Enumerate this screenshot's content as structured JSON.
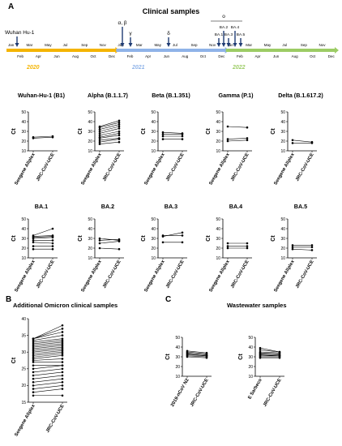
{
  "panel_labels": {
    "a": "A",
    "b": "B",
    "c": "C"
  },
  "timeline": {
    "title": "Clinical samples",
    "start_label": "Wuhan Hu-1",
    "years": [
      {
        "label": "2020",
        "color": "#f4b400"
      },
      {
        "label": "2021",
        "color": "#8fb3e8"
      },
      {
        "label": "2022",
        "color": "#9ccc65"
      }
    ],
    "top_months": [
      "Jan",
      "Mar",
      "May",
      "Jul",
      "Sep",
      "Nov",
      "Jan",
      "Mar",
      "May",
      "Jul",
      "Sep",
      "Nov",
      "Jan",
      "Mar",
      "May",
      "Jul",
      "Sep",
      "Nov"
    ],
    "bottom_months": [
      "Feb",
      "Apr",
      "Jun",
      "Aug",
      "Oct",
      "Dec",
      "Feb",
      "Apr",
      "Jun",
      "Aug",
      "Oct",
      "Dec",
      "Feb",
      "Apr",
      "Jun",
      "Aug",
      "Oct",
      "Dec"
    ],
    "variants": [
      "α, β",
      "γ",
      "δ",
      "ο",
      "BA.1",
      "BA.2",
      "BA.3",
      "BA.4",
      "BA.5"
    ]
  },
  "chart_data": [
    {
      "type": "line",
      "title": "Wuhan-Hu-1 (B1)",
      "ylabel": "Ct",
      "ylim": [
        10,
        50
      ],
      "yticks": [
        "10",
        "20",
        "30",
        "40",
        "50"
      ],
      "categories": [
        "Seegene Allplex",
        "JRC-CoV-UCE"
      ],
      "series": [
        {
          "values": [
            23,
            24
          ]
        },
        {
          "values": [
            24,
            25
          ]
        }
      ]
    },
    {
      "type": "line",
      "title": "Alpha (B.1.1.7)",
      "ylabel": "Ct",
      "ylim": [
        10,
        50
      ],
      "yticks": [
        "10",
        "20",
        "30",
        "40",
        "50"
      ],
      "categories": [
        "Seegene Allplex",
        "JRC-CoV-UCE"
      ],
      "series": [
        {
          "values": [
            17,
            19
          ]
        },
        {
          "values": [
            19,
            22
          ]
        },
        {
          "values": [
            21,
            23
          ]
        },
        {
          "values": [
            23,
            26
          ]
        },
        {
          "values": [
            24,
            28
          ]
        },
        {
          "values": [
            26,
            30
          ]
        },
        {
          "values": [
            28,
            33
          ]
        },
        {
          "values": [
            30,
            35
          ]
        },
        {
          "values": [
            32,
            37
          ]
        },
        {
          "values": [
            34,
            39
          ]
        },
        {
          "values": [
            35,
            41
          ]
        }
      ]
    },
    {
      "type": "line",
      "title": "Beta (B.1.351)",
      "ylabel": "Ct",
      "ylim": [
        10,
        50
      ],
      "yticks": [
        "10",
        "20",
        "30",
        "40",
        "50"
      ],
      "categories": [
        "Seegene Allplex",
        "JRC-CoV-UCE"
      ],
      "series": [
        {
          "values": [
            22,
            22
          ]
        },
        {
          "values": [
            25,
            25
          ]
        },
        {
          "values": [
            27,
            27
          ]
        },
        {
          "values": [
            29,
            28
          ]
        }
      ]
    },
    {
      "type": "line",
      "title": "Gamma (P.1)",
      "ylabel": "Ct",
      "ylim": [
        10,
        50
      ],
      "yticks": [
        "10",
        "20",
        "30",
        "40",
        "50"
      ],
      "categories": [
        "Seegene Allplex",
        "JRC-CoV-UCE"
      ],
      "series": [
        {
          "values": [
            20,
            21
          ]
        },
        {
          "values": [
            22,
            23
          ]
        },
        {
          "values": [
            35,
            34
          ]
        }
      ]
    },
    {
      "type": "line",
      "title": "Delta (B.1.617.2)",
      "ylabel": "Ct",
      "ylim": [
        10,
        50
      ],
      "yticks": [
        "10",
        "20",
        "30",
        "40",
        "50"
      ],
      "categories": [
        "Seegene Allplex",
        "JRC-CoV-UCE"
      ],
      "series": [
        {
          "values": [
            18,
            18
          ]
        },
        {
          "values": [
            21,
            19
          ]
        }
      ]
    },
    {
      "type": "line",
      "title": "BA.1",
      "ylabel": "Ct",
      "ylim": [
        10,
        50
      ],
      "yticks": [
        "10",
        "20",
        "30",
        "40",
        "50"
      ],
      "categories": [
        "Seegene Allplex",
        "JRC-CoV-UCE"
      ],
      "series": [
        {
          "values": [
            19,
            19
          ]
        },
        {
          "values": [
            22,
            22
          ]
        },
        {
          "values": [
            26,
            25
          ]
        },
        {
          "values": [
            28,
            28
          ]
        },
        {
          "values": [
            30,
            31
          ]
        },
        {
          "values": [
            31,
            32
          ]
        },
        {
          "values": [
            32,
            33
          ]
        },
        {
          "values": [
            33,
            40
          ]
        }
      ]
    },
    {
      "type": "line",
      "title": "BA.2",
      "ylabel": "Ct",
      "ylim": [
        10,
        50
      ],
      "yticks": [
        "10",
        "20",
        "30",
        "40",
        "50"
      ],
      "categories": [
        "Seegene Allplex",
        "JRC-CoV-UCE"
      ],
      "series": [
        {
          "values": [
            20,
            19
          ]
        },
        {
          "values": [
            25,
            27
          ]
        },
        {
          "values": [
            28,
            29
          ]
        },
        {
          "values": [
            30,
            28
          ]
        }
      ]
    },
    {
      "type": "line",
      "title": "BA.3",
      "ylabel": "Ct",
      "ylim": [
        10,
        50
      ],
      "yticks": [
        "10",
        "20",
        "30",
        "40",
        "50"
      ],
      "categories": [
        "Seegene Allplex",
        "JRC-CoV-UCE"
      ],
      "series": [
        {
          "values": [
            26,
            26
          ]
        },
        {
          "values": [
            32,
            36
          ]
        },
        {
          "values": [
            33,
            33
          ]
        }
      ]
    },
    {
      "type": "line",
      "title": "BA.4",
      "ylabel": "Ct",
      "ylim": [
        10,
        50
      ],
      "yticks": [
        "10",
        "20",
        "30",
        "40",
        "50"
      ],
      "categories": [
        "Seegene Allplex",
        "JRC-CoV-UCE"
      ],
      "series": [
        {
          "values": [
            20,
            20
          ]
        },
        {
          "values": [
            22,
            22
          ]
        },
        {
          "values": [
            25,
            25
          ]
        }
      ]
    },
    {
      "type": "line",
      "title": "BA.5",
      "ylabel": "Ct",
      "ylim": [
        10,
        50
      ],
      "yticks": [
        "10",
        "20",
        "30",
        "40",
        "50"
      ],
      "categories": [
        "Seegene Allplex",
        "JRC-CoV-UCE"
      ],
      "series": [
        {
          "values": [
            19,
            18
          ]
        },
        {
          "values": [
            21,
            21
          ]
        },
        {
          "values": [
            23,
            23
          ]
        }
      ]
    },
    {
      "type": "line",
      "title": "Additional Omicron clinical samples",
      "ylabel": "Ct",
      "ylim": [
        15,
        40
      ],
      "yticks": [
        "15",
        "20",
        "25",
        "30",
        "35",
        "40"
      ],
      "categories": [
        "Seegene Allplex",
        "JRC-CoV-UCE"
      ],
      "series": [
        {
          "values": [
            17,
            17
          ]
        },
        {
          "values": [
            18,
            19
          ]
        },
        {
          "values": [
            19,
            20
          ]
        },
        {
          "values": [
            20,
            21
          ]
        },
        {
          "values": [
            21,
            22
          ]
        },
        {
          "values": [
            22,
            23
          ]
        },
        {
          "values": [
            23,
            24
          ]
        },
        {
          "values": [
            24,
            25
          ]
        },
        {
          "values": [
            25,
            26
          ]
        },
        {
          "values": [
            26,
            26
          ]
        },
        {
          "values": [
            27,
            27
          ]
        },
        {
          "values": [
            27.5,
            28
          ]
        },
        {
          "values": [
            28,
            29
          ]
        },
        {
          "values": [
            28.5,
            29.5
          ]
        },
        {
          "values": [
            29,
            30
          ]
        },
        {
          "values": [
            29.5,
            30.5
          ]
        },
        {
          "values": [
            30,
            31
          ]
        },
        {
          "values": [
            30.5,
            31.5
          ]
        },
        {
          "values": [
            31,
            32
          ]
        },
        {
          "values": [
            31.5,
            32.5
          ]
        },
        {
          "values": [
            32,
            33
          ]
        },
        {
          "values": [
            32.5,
            33.5
          ]
        },
        {
          "values": [
            33,
            34
          ]
        },
        {
          "values": [
            33.5,
            35
          ]
        },
        {
          "values": [
            34,
            36
          ]
        },
        {
          "values": [
            34,
            37
          ]
        },
        {
          "values": [
            34,
            38
          ]
        }
      ]
    },
    {
      "type": "line",
      "title": "2019-nCoV N2",
      "ylabel": "Ct",
      "ylim": [
        10,
        50
      ],
      "yticks": [
        "10",
        "20",
        "30",
        "40",
        "50"
      ],
      "categories": [
        "2019-nCoV N2",
        "JRC-CoV-UCE"
      ],
      "series": [
        {
          "values": [
            30,
            29
          ]
        },
        {
          "values": [
            31,
            30
          ]
        },
        {
          "values": [
            32,
            31
          ]
        },
        {
          "values": [
            33,
            31
          ]
        },
        {
          "values": [
            34,
            32
          ]
        },
        {
          "values": [
            35,
            33
          ]
        },
        {
          "values": [
            36,
            34
          ]
        }
      ]
    },
    {
      "type": "line",
      "title": "E Sarbeco",
      "ylabel": "Ct",
      "ylim": [
        10,
        50
      ],
      "yticks": [
        "10",
        "20",
        "30",
        "40",
        "50"
      ],
      "categories": [
        "E Sarbeco",
        "JRC-CoV-UCE"
      ],
      "series": [
        {
          "values": [
            29,
            29
          ]
        },
        {
          "values": [
            30,
            30
          ]
        },
        {
          "values": [
            31,
            31
          ]
        },
        {
          "values": [
            32,
            31
          ]
        },
        {
          "values": [
            33,
            32
          ]
        },
        {
          "values": [
            34,
            33
          ]
        },
        {
          "values": [
            35,
            34
          ]
        },
        {
          "values": [
            37,
            35
          ]
        },
        {
          "values": [
            39,
            35
          ]
        }
      ]
    }
  ],
  "section_titles": {
    "b": "Additional Omicron clinical samples",
    "c": "Wastewater samples"
  }
}
